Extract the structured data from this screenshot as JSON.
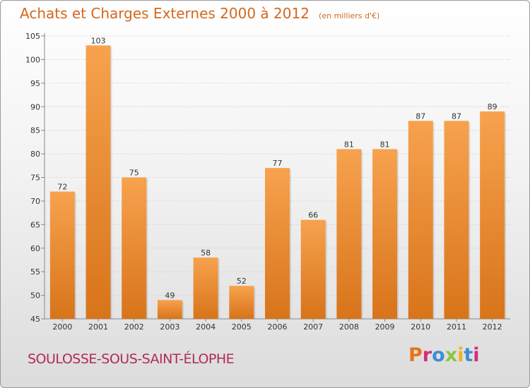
{
  "header": {
    "title": "Achats et Charges Externes 2000 à 2012",
    "subtitle": "(en milliers d'€)"
  },
  "footer": {
    "commune": "SOULOSSE-SOUS-SAINT-ÉLOPHE",
    "brand": "Proxiti"
  },
  "colors": {
    "bar_light": "#f7a24e",
    "bar_dark": "#d8741a",
    "title": "#d2691e",
    "commune": "#b02c56"
  },
  "chart_data": {
    "type": "bar",
    "title": "Achats et Charges Externes 2000 à 2012",
    "subtitle": "(en milliers d'€)",
    "categories": [
      "2000",
      "2001",
      "2002",
      "2003",
      "2004",
      "2005",
      "2006",
      "2007",
      "2008",
      "2009",
      "2010",
      "2011",
      "2012"
    ],
    "values": [
      72,
      103,
      75,
      49,
      58,
      52,
      77,
      66,
      81,
      81,
      87,
      87,
      89
    ],
    "ylim": [
      45,
      105
    ],
    "yticks": [
      45,
      50,
      55,
      60,
      65,
      70,
      75,
      80,
      85,
      90,
      95,
      100,
      105
    ],
    "grid": true,
    "xlabel": "",
    "ylabel": ""
  }
}
